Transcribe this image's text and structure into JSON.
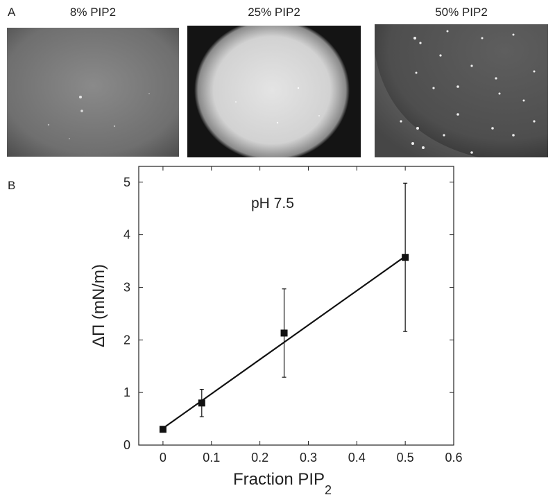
{
  "figure": {
    "panel_a_label": "A",
    "panel_b_label": "B",
    "images": [
      {
        "title": "8% PIP2"
      },
      {
        "title": "25% PIP2"
      },
      {
        "title": "50% PIP2"
      }
    ]
  },
  "chart_data": {
    "type": "scatter",
    "annotation": "pH 7.5",
    "xlabel_main": "Fraction PIP",
    "xlabel_sub": "2",
    "ylabel": "ΔΠ (mN/m)",
    "xlim": [
      -0.05,
      0.6
    ],
    "ylim": [
      0,
      5.3
    ],
    "x_ticks": [
      0,
      0.1,
      0.2,
      0.3,
      0.4,
      0.5,
      0.6
    ],
    "x_tick_labels": [
      "0",
      "0.1",
      "0.2",
      "0.3",
      "0.4",
      "0.5",
      "0.6"
    ],
    "y_ticks": [
      0,
      1,
      2,
      3,
      4,
      5
    ],
    "y_tick_labels": [
      "0",
      "1",
      "2",
      "3",
      "4",
      "5"
    ],
    "points": [
      {
        "x": 0.0,
        "y": 0.3,
        "err": 0
      },
      {
        "x": 0.08,
        "y": 0.8,
        "err": 0.26
      },
      {
        "x": 0.25,
        "y": 2.13,
        "err": 0.84
      },
      {
        "x": 0.5,
        "y": 3.57,
        "err": 1.41
      }
    ],
    "fit_line": {
      "x": [
        0.0,
        0.5
      ],
      "y": [
        0.32,
        3.59
      ]
    },
    "grid": false,
    "marker_color": "#111111"
  }
}
